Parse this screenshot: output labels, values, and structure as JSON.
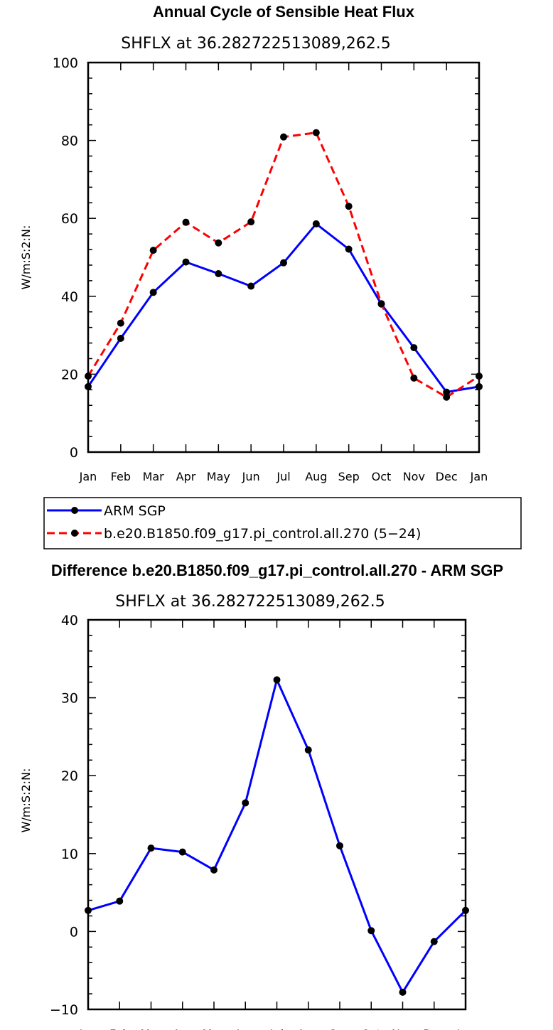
{
  "chart_data": [
    {
      "type": "line",
      "title": "Annual Cycle of Sensible Heat Flux",
      "subtitle": "SHFLX at 36.282722513089,262.5",
      "ylabel": "W/m:S:2:N:",
      "xlabel": "",
      "categories": [
        "Jan",
        "Feb",
        "Mar",
        "Apr",
        "May",
        "Jun",
        "Jul",
        "Aug",
        "Sep",
        "Oct",
        "Nov",
        "Dec",
        "Jan"
      ],
      "ylim": [
        0,
        100
      ],
      "yticks": [
        0,
        20,
        40,
        60,
        80,
        100
      ],
      "grid": false,
      "legend": "below",
      "series": [
        {
          "name": "ARM SGP",
          "color": "#0000ff",
          "dash": "solid",
          "values": [
            16.8,
            29.2,
            41.0,
            48.8,
            45.8,
            42.6,
            48.6,
            58.6,
            52.1,
            38.0,
            26.8,
            15.4,
            16.8
          ]
        },
        {
          "name": "b.e20.B1850.f09_g17.pi_control.all.270 (5−24)",
          "color": "#ff0000",
          "dash": "dashed",
          "values": [
            19.5,
            33.1,
            51.8,
            59.0,
            53.7,
            59.1,
            80.9,
            82.0,
            63.1,
            38.1,
            19.0,
            14.1,
            19.5
          ]
        }
      ]
    },
    {
      "type": "line",
      "title": "Difference b.e20.B1850.f09_g17.pi_control.all.270 - ARM SGP",
      "subtitle": "SHFLX at 36.282722513089,262.5",
      "ylabel": "W/m:S:2:N:",
      "xlabel": "",
      "categories": [
        "Jan",
        "Feb",
        "Mar",
        "Apr",
        "May",
        "Jun",
        "Jul",
        "Aug",
        "Sep",
        "Oct",
        "Nov",
        "Dec",
        "Jan"
      ],
      "ylim": [
        -10,
        40
      ],
      "yticks": [
        -10,
        0,
        10,
        20,
        30,
        40
      ],
      "grid": false,
      "series": [
        {
          "color": "#0000ff",
          "dash": "solid",
          "values": [
            2.7,
            3.9,
            10.7,
            10.2,
            7.9,
            16.5,
            32.3,
            23.3,
            11.0,
            0.1,
            -7.8,
            -1.3,
            2.7
          ]
        }
      ]
    }
  ]
}
